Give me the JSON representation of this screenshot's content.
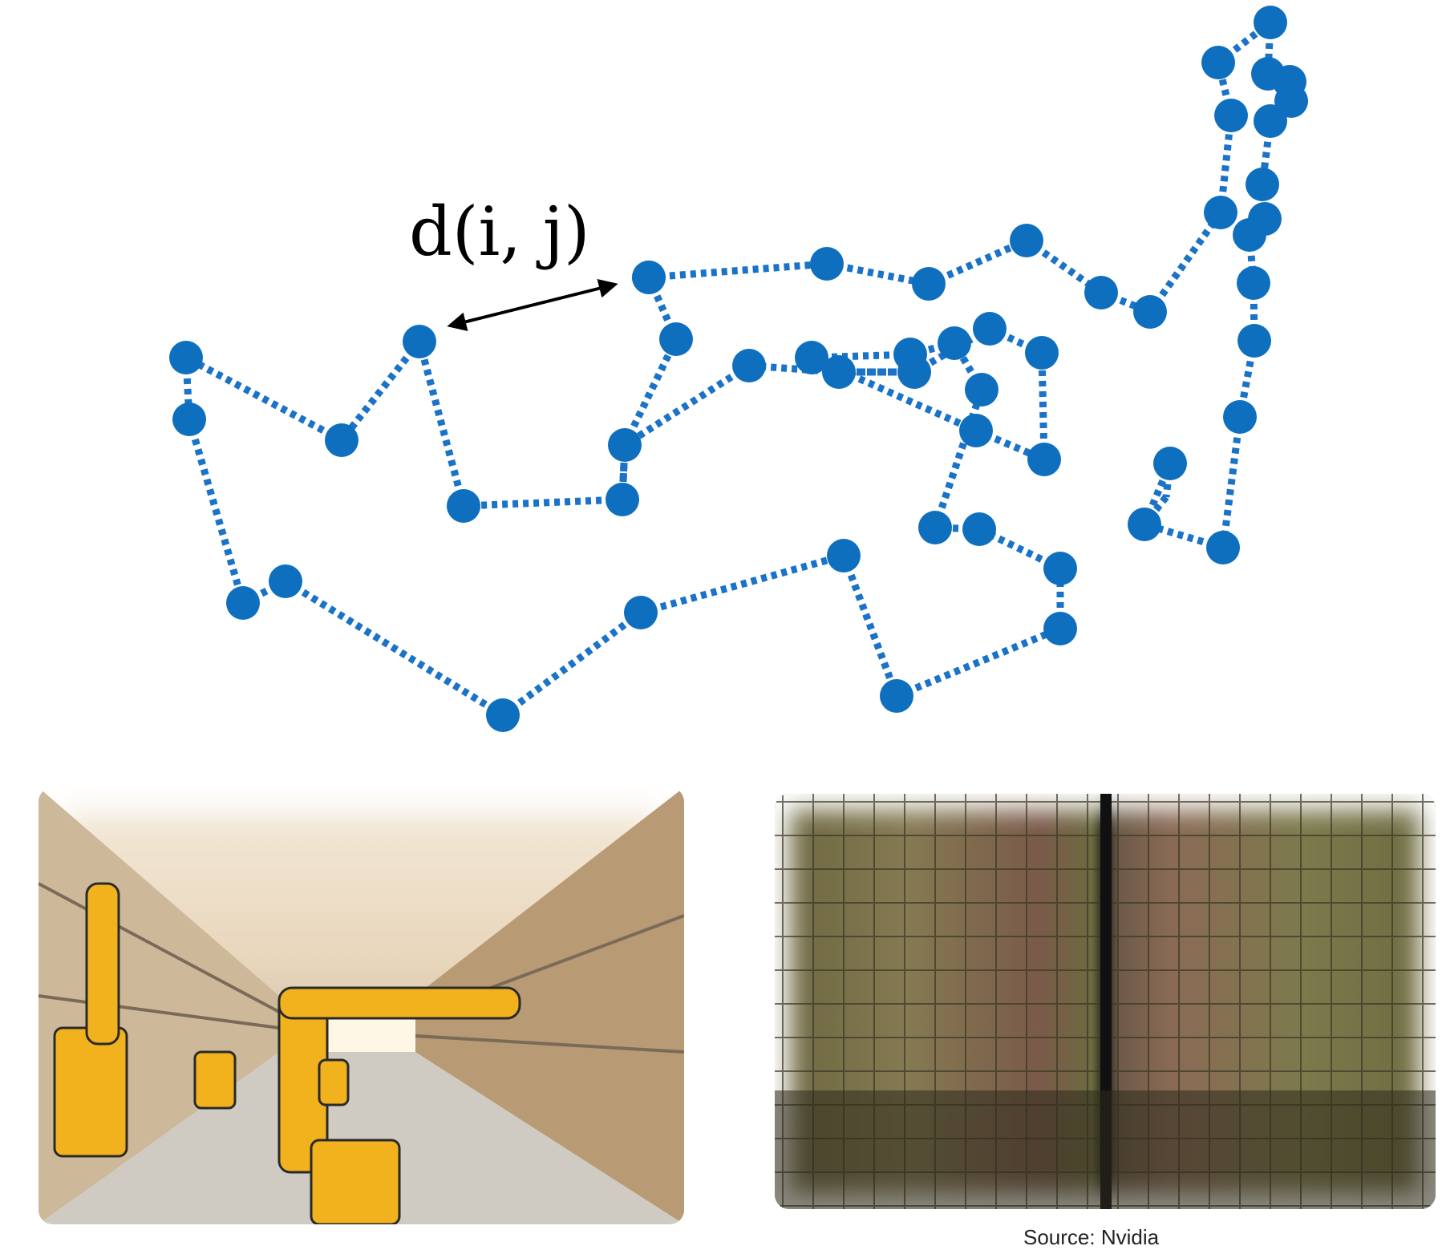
{
  "diagram": {
    "distance_label": "d(i, j)",
    "node_color": "#0f6fbf",
    "edge_color": "#1a73c6",
    "edge_style": "dotted",
    "arrow_color": "#000000"
  },
  "images": {
    "warehouse_photo": "warehouse-robot-arms-image",
    "chip_photo": "gpu-die-image"
  },
  "caption": {
    "source": "Source: Nvidia"
  }
}
